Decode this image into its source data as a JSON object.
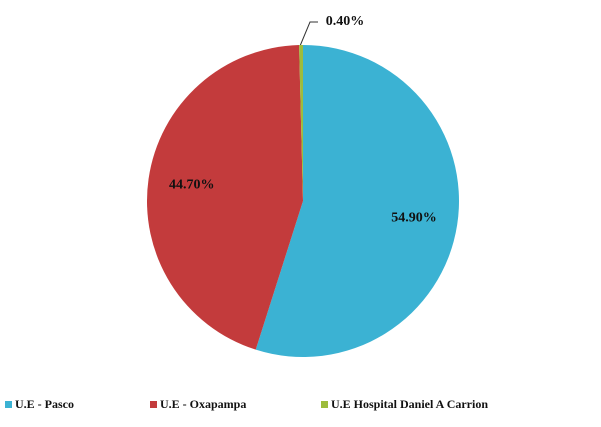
{
  "chart_data": {
    "type": "pie",
    "categories": [
      "U.E - Pasco",
      "U.E - Oxapampa",
      "U.E Hospital Daniel A Carrion"
    ],
    "values": [
      54.9,
      44.7,
      0.4
    ],
    "value_labels": [
      "54.90%",
      "44.70%",
      "0.40%"
    ],
    "colors": [
      "#3bb2d3",
      "#c33b3c",
      "#9dbc3c"
    ],
    "legend": "bottom"
  }
}
